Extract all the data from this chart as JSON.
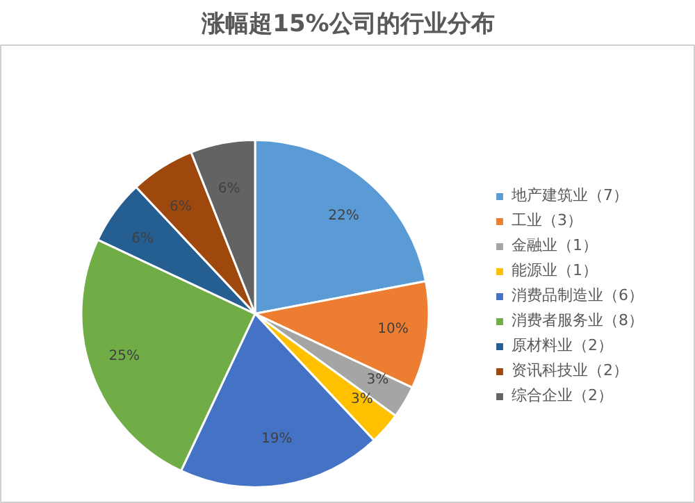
{
  "chart_data": {
    "type": "pie",
    "title": "涨幅超15%公司的行业分布",
    "categories": [
      "地产建筑业（7）",
      "工业（3）",
      "金融业（1）",
      "能源业（1）",
      "消费品制造业（6）",
      "消费者服务业（8）",
      "原材料业（2）",
      "资讯科技业（2）",
      "综合企业（2）"
    ],
    "values": [
      22,
      10,
      3,
      3,
      19,
      25,
      6,
      6,
      6
    ],
    "value_labels": [
      "22%",
      "10%",
      "3%",
      "3%",
      "19%",
      "25%",
      "6%",
      "6%",
      "6%"
    ],
    "colors": [
      "#5b9bd5",
      "#ed7d31",
      "#a5a5a5",
      "#ffc000",
      "#4472c4",
      "#70ad47",
      "#255e91",
      "#9e480e",
      "#636363"
    ],
    "legend": "right"
  }
}
